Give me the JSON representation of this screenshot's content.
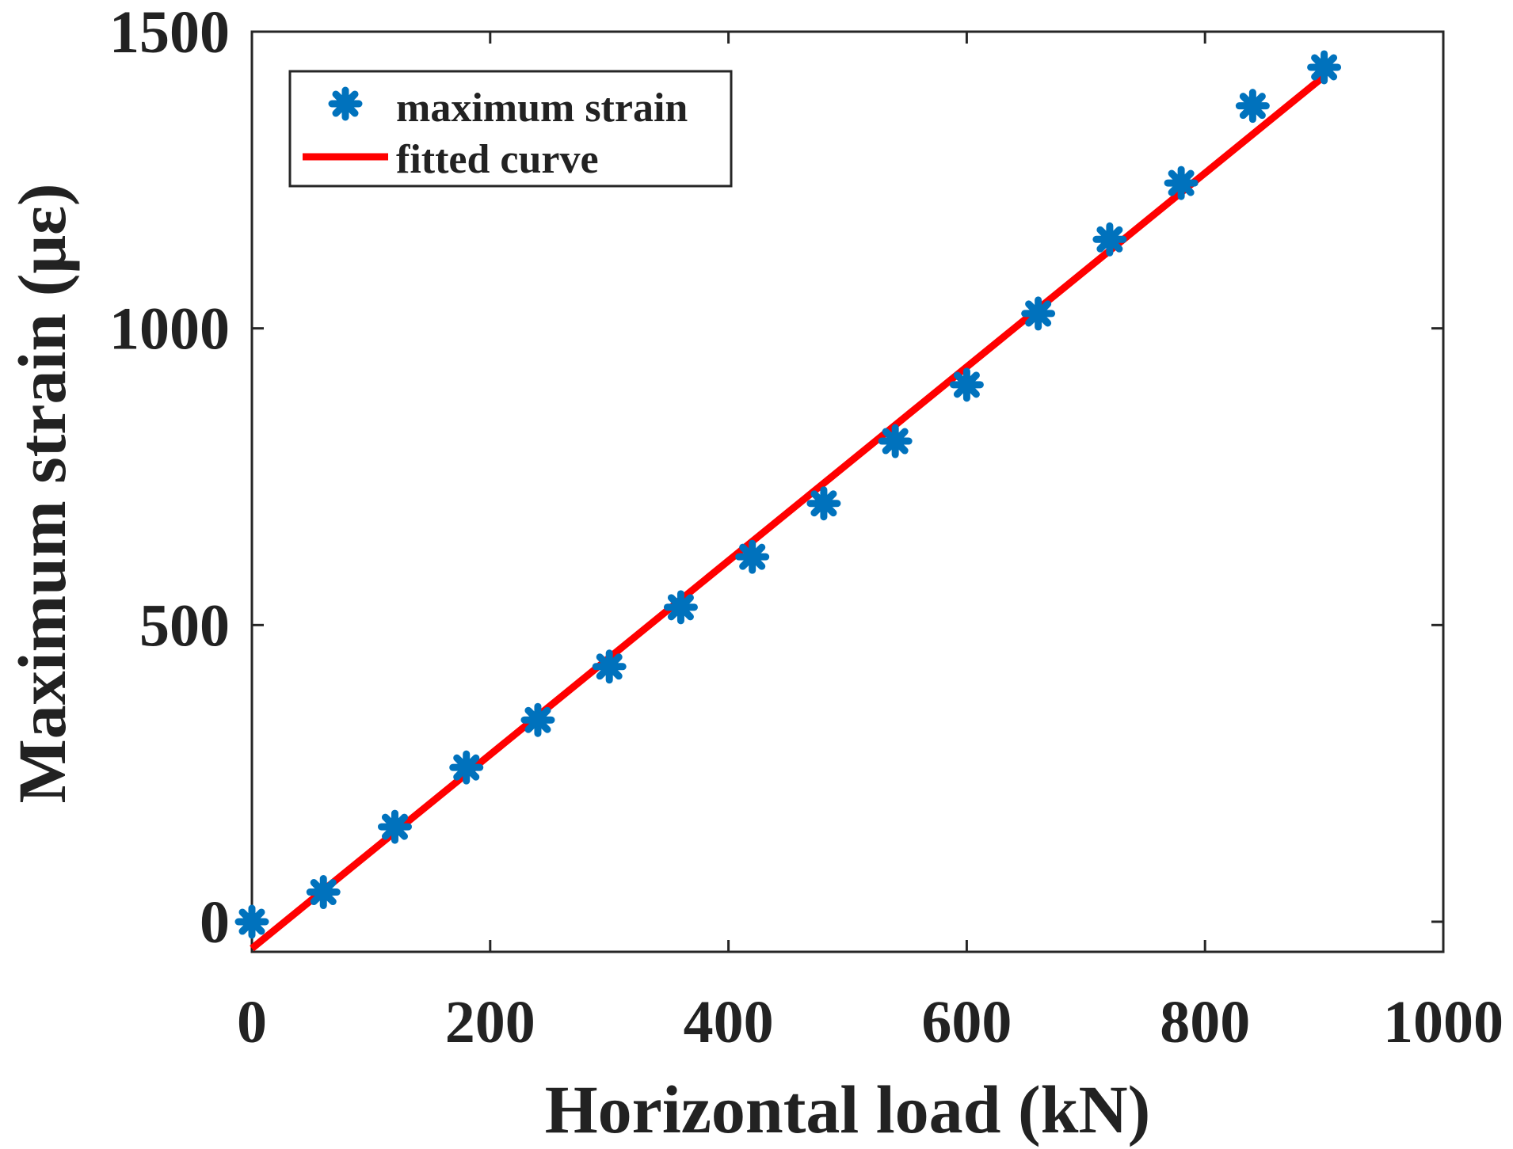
{
  "chart_data": {
    "type": "scatter",
    "title": "",
    "xlabel": "Horizontal load (kN)",
    "ylabel": "Maximum strain (με)",
    "xlim": [
      0,
      1000
    ],
    "ylim": [
      -50,
      1500
    ],
    "xticks": [
      0,
      200,
      400,
      600,
      800,
      1000
    ],
    "yticks": [
      0,
      500,
      1000,
      1500
    ],
    "xtick_labels": [
      "0",
      "200",
      "400",
      "600",
      "800",
      "1000"
    ],
    "ytick_labels": [
      "0",
      "500",
      "1000",
      "1500"
    ],
    "grid": false,
    "legend_position": "top-left",
    "series": [
      {
        "name": "maximum strain",
        "kind": "markers",
        "marker": "asterisk",
        "color": "#0072BD",
        "x": [
          0,
          60,
          120,
          180,
          240,
          300,
          360,
          420,
          480,
          540,
          600,
          660,
          720,
          780,
          840,
          900
        ],
        "y": [
          0,
          50,
          160,
          260,
          340,
          430,
          530,
          615,
          705,
          810,
          905,
          1025,
          1150,
          1245,
          1375,
          1440
        ]
      },
      {
        "name": "fitted curve",
        "kind": "line",
        "color": "#FF0000",
        "x": [
          0,
          900
        ],
        "y": [
          -45,
          1425
        ]
      }
    ]
  }
}
